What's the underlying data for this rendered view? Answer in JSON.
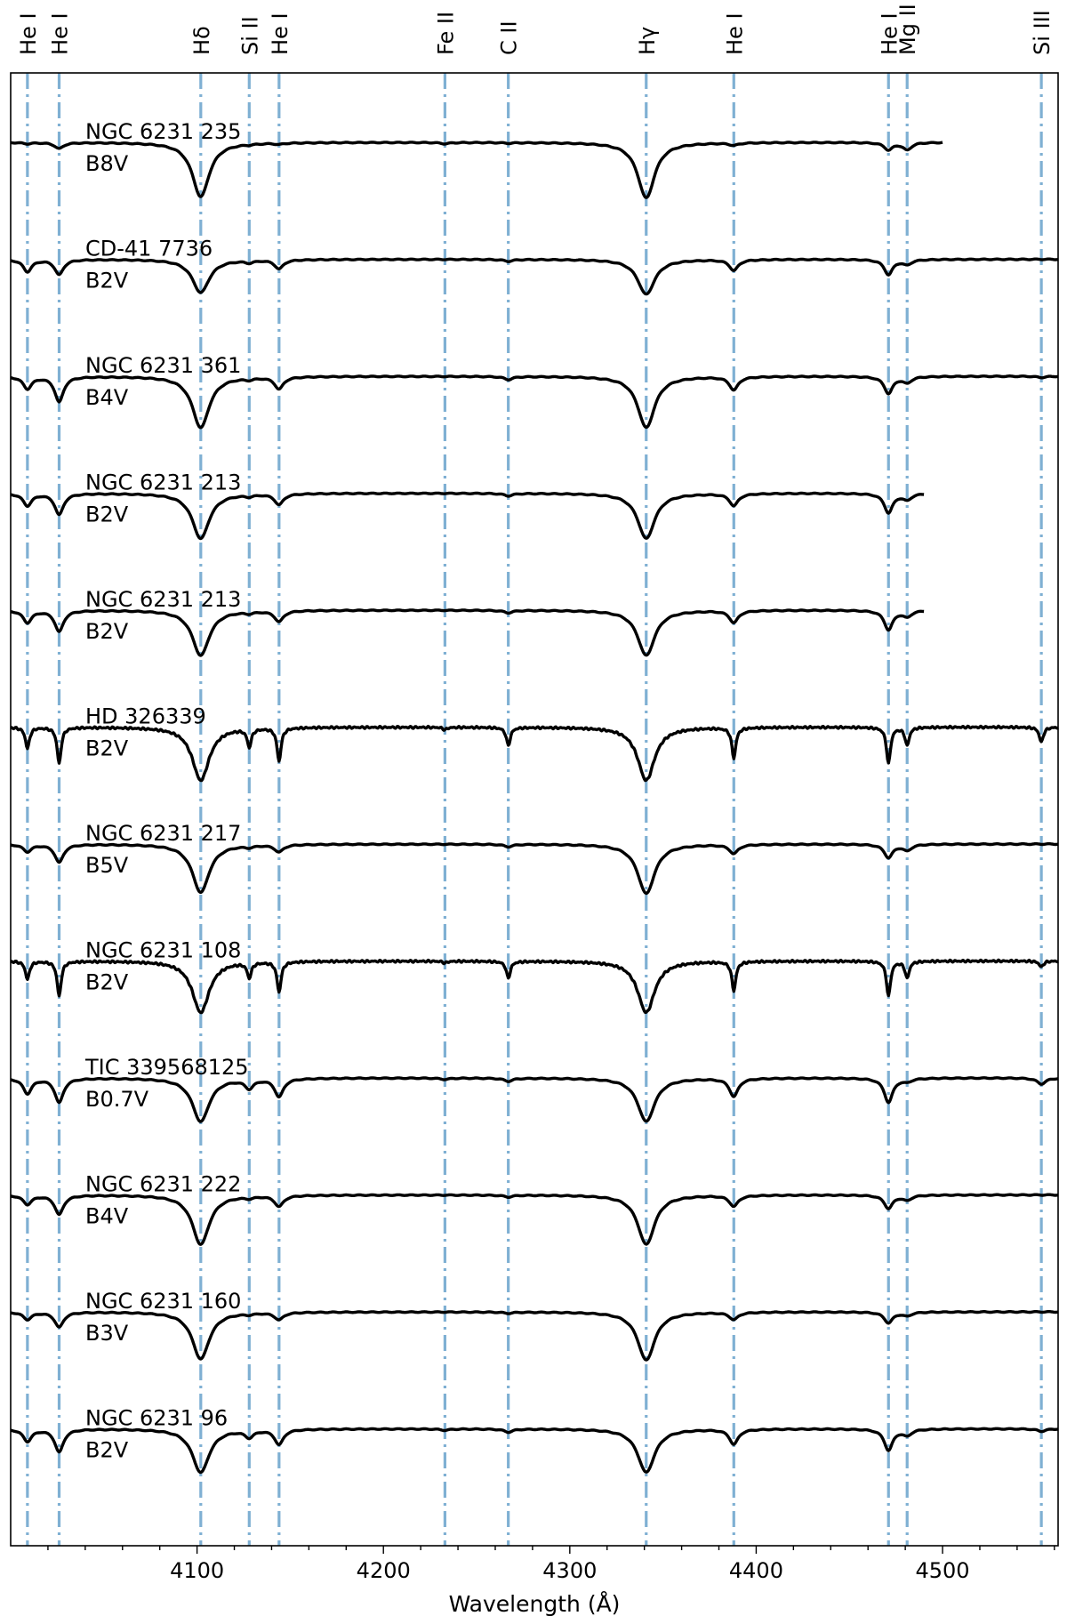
{
  "chart_data": {
    "type": "line",
    "xlabel": "Wavelength (Å)",
    "ylabel": "",
    "xlim": [
      4000,
      4562
    ],
    "xticks": [
      4100,
      4200,
      4300,
      4400,
      4500
    ],
    "grid": false,
    "line_identifications": [
      {
        "label": "He I",
        "wavelength": 4009
      },
      {
        "label": "He I",
        "wavelength": 4026
      },
      {
        "label": "Hδ",
        "wavelength": 4102
      },
      {
        "label": "Si II",
        "wavelength": 4128
      },
      {
        "label": "He I",
        "wavelength": 4144
      },
      {
        "label": "Fe II",
        "wavelength": 4233
      },
      {
        "label": "C II",
        "wavelength": 4267
      },
      {
        "label": "Hγ",
        "wavelength": 4341
      },
      {
        "label": "He I",
        "wavelength": 4388
      },
      {
        "label": "He I",
        "wavelength": 4471
      },
      {
        "label": "Mg II",
        "wavelength": 4481
      },
      {
        "label": "Si III",
        "wavelength": 4553
      }
    ],
    "series": [
      {
        "name": "NGC 6231 235",
        "sptype": "B8V",
        "x_range": [
          4000,
          4500
        ],
        "depths": {
          "4009": 0.02,
          "4026": 0.1,
          "4102": 0.9,
          "4128": 0.01,
          "4144": 0.02,
          "4233": 0.02,
          "4267": 0.01,
          "4341": 0.92,
          "4388": 0.04,
          "4471": 0.12,
          "4481": 0.12,
          "4553": 0
        }
      },
      {
        "name": "CD-41 7736",
        "sptype": "B2V",
        "x_range": [
          4000,
          4562
        ],
        "depths": {
          "4009": 0.2,
          "4026": 0.25,
          "4102": 0.55,
          "4128": 0.04,
          "4144": 0.15,
          "4233": 0,
          "4267": 0.03,
          "4341": 0.58,
          "4388": 0.18,
          "4471": 0.25,
          "4481": 0.08,
          "4553": 0
        }
      },
      {
        "name": "NGC 6231 361",
        "sptype": "B4V",
        "x_range": [
          4000,
          4562
        ],
        "depths": {
          "4009": 0.2,
          "4026": 0.42,
          "4102": 0.85,
          "4128": 0.03,
          "4144": 0.2,
          "4233": 0,
          "4267": 0.05,
          "4341": 0.85,
          "4388": 0.22,
          "4471": 0.28,
          "4481": 0.1,
          "4553": 0.02
        }
      },
      {
        "name": "NGC 6231 213",
        "sptype": "B2V",
        "x_range": [
          4000,
          4490
        ],
        "depths": {
          "4009": 0.2,
          "4026": 0.35,
          "4102": 0.75,
          "4128": 0.03,
          "4144": 0.18,
          "4233": 0,
          "4267": 0.04,
          "4341": 0.75,
          "4388": 0.2,
          "4471": 0.32,
          "4481": 0.1,
          "4553": 0
        }
      },
      {
        "name": "NGC 6231 213",
        "sptype": "B2V",
        "x_range": [
          4000,
          4490
        ],
        "depths": {
          "4009": 0.2,
          "4026": 0.35,
          "4102": 0.75,
          "4128": 0.03,
          "4144": 0.18,
          "4233": 0,
          "4267": 0.04,
          "4341": 0.75,
          "4388": 0.2,
          "4471": 0.32,
          "4481": 0.1,
          "4553": 0
        }
      },
      {
        "name": "HD 326339",
        "sptype": "B2V",
        "x_range": [
          4000,
          4562
        ],
        "depths": {
          "4009": 0.35,
          "4026": 0.6,
          "4102": 0.88,
          "4128": 0.3,
          "4144": 0.55,
          "4233": 0.04,
          "4267": 0.3,
          "4341": 0.88,
          "4388": 0.5,
          "4471": 0.6,
          "4481": 0.3,
          "4553": 0.25
        }
      },
      {
        "name": "NGC 6231 217",
        "sptype": "B5V",
        "x_range": [
          4000,
          4562
        ],
        "depths": {
          "4009": 0.12,
          "4026": 0.3,
          "4102": 0.8,
          "4128": 0.03,
          "4144": 0.12,
          "4233": 0,
          "4267": 0.04,
          "4341": 0.82,
          "4388": 0.15,
          "4471": 0.22,
          "4481": 0.1,
          "4553": 0
        }
      },
      {
        "name": "NGC 6231 108",
        "sptype": "B2V",
        "x_range": [
          4000,
          4562
        ],
        "depths": {
          "4009": 0.3,
          "4026": 0.58,
          "4102": 0.85,
          "4128": 0.25,
          "4144": 0.5,
          "4233": 0.03,
          "4267": 0.28,
          "4341": 0.85,
          "4388": 0.48,
          "4471": 0.58,
          "4481": 0.28,
          "4553": 0.1
        }
      },
      {
        "name": "TIC 339568125",
        "sptype": "B0.7V",
        "x_range": [
          4000,
          4562
        ],
        "depths": {
          "4009": 0.25,
          "4026": 0.4,
          "4102": 0.72,
          "4128": 0.15,
          "4144": 0.3,
          "4233": 0.02,
          "4267": 0.05,
          "4341": 0.72,
          "4388": 0.3,
          "4471": 0.4,
          "4481": 0.05,
          "4553": 0.1
        }
      },
      {
        "name": "NGC 6231 222",
        "sptype": "B4V",
        "x_range": [
          4000,
          4562
        ],
        "depths": {
          "4009": 0.15,
          "4026": 0.32,
          "4102": 0.82,
          "4128": 0.03,
          "4144": 0.18,
          "4233": 0,
          "4267": 0.03,
          "4341": 0.82,
          "4388": 0.18,
          "4471": 0.22,
          "4481": 0.08,
          "4553": 0
        }
      },
      {
        "name": "NGC 6231 160",
        "sptype": "B3V",
        "x_range": [
          4000,
          4562
        ],
        "depths": {
          "4009": 0.12,
          "4026": 0.25,
          "4102": 0.78,
          "4128": 0.02,
          "4144": 0.12,
          "4233": 0,
          "4267": 0.02,
          "4341": 0.8,
          "4388": 0.12,
          "4471": 0.18,
          "4481": 0.06,
          "4553": 0
        }
      },
      {
        "name": "NGC 6231 96",
        "sptype": "B2V",
        "x_range": [
          4000,
          4562
        ],
        "depths": {
          "4009": 0.2,
          "4026": 0.38,
          "4102": 0.72,
          "4128": 0.12,
          "4144": 0.25,
          "4233": 0.02,
          "4267": 0.05,
          "4341": 0.72,
          "4388": 0.25,
          "4471": 0.35,
          "4481": 0.1,
          "4553": 0.04
        }
      }
    ]
  }
}
